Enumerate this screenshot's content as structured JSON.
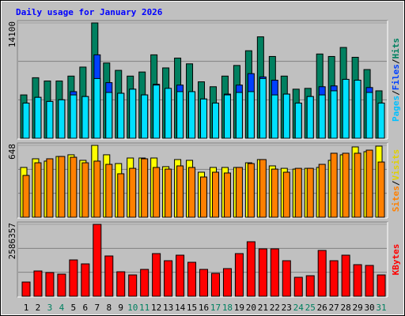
{
  "title": "Daily usage for January 2026",
  "legend_separator": "/",
  "categories": [
    "1",
    "2",
    "3",
    "4",
    "5",
    "6",
    "7",
    "8",
    "9",
    "10",
    "11",
    "12",
    "13",
    "14",
    "15",
    "16",
    "17",
    "18",
    "19",
    "20",
    "21",
    "22",
    "23",
    "24",
    "25",
    "26",
    "27",
    "28",
    "29",
    "30",
    "31"
  ],
  "category_colors": [
    "#000000",
    "#000000",
    "#008060",
    "#008060",
    "#000000",
    "#000000",
    "#000000",
    "#000000",
    "#000000",
    "#008060",
    "#008060",
    "#000000",
    "#000000",
    "#000000",
    "#000000",
    "#000000",
    "#008060",
    "#008060",
    "#000000",
    "#000000",
    "#000000",
    "#000000",
    "#000000",
    "#008060",
    "#008060",
    "#000000",
    "#000000",
    "#000000",
    "#000000",
    "#000000",
    "#008060"
  ],
  "chart_data": [
    {
      "type": "bar",
      "ylim": [
        0,
        14100
      ],
      "yticks": [
        14100
      ],
      "grid": true,
      "series": [
        {
          "name": "Hits",
          "color": "#008060",
          "label_color": "#008060",
          "values": [
            5300,
            7400,
            7000,
            7000,
            7600,
            8700,
            14100,
            9200,
            8300,
            7600,
            8100,
            10200,
            8600,
            9800,
            9100,
            6900,
            6300,
            7600,
            8900,
            10700,
            12400,
            10000,
            7600,
            6000,
            6100,
            10300,
            10000,
            11100,
            9900,
            8400,
            5800
          ]
        },
        {
          "name": "Files",
          "color": "#0040FF",
          "label_color": "#0040FF",
          "values": [
            4300,
            5000,
            4500,
            4700,
            5700,
            5100,
            10200,
            6800,
            5500,
            6000,
            5300,
            6600,
            5800,
            6500,
            5700,
            4800,
            4300,
            5400,
            6500,
            7900,
            7500,
            7100,
            5400,
            4300,
            5100,
            6300,
            6400,
            7200,
            7100,
            6200,
            4300
          ]
        },
        {
          "name": "Pages",
          "color": "#00E0FF",
          "label_color": "#00C0FF",
          "values": [
            4300,
            5000,
            4500,
            4700,
            5300,
            5100,
            7300,
            5600,
            5500,
            6000,
            5300,
            6500,
            6100,
            5700,
            5700,
            4800,
            4300,
            5300,
            5600,
            5700,
            7300,
            5300,
            5400,
            4300,
            5100,
            5300,
            5800,
            7200,
            7100,
            5600,
            4300
          ]
        }
      ]
    },
    {
      "type": "bar",
      "ylim": [
        0,
        648
      ],
      "yticks": [
        648
      ],
      "grid": true,
      "series": [
        {
          "name": "Visits",
          "color": "#FFFF00",
          "label_color": "#E0D000",
          "values": [
            449,
            527,
            506,
            548,
            563,
            513,
            648,
            563,
            484,
            534,
            534,
            534,
            456,
            520,
            513,
            406,
            449,
            449,
            449,
            491,
            520,
            463,
            441,
            434,
            441,
            449,
            513,
            563,
            634,
            591,
            641
          ]
        },
        {
          "name": "Sites",
          "color": "#FF8000",
          "label_color": "#FF8000",
          "values": [
            377,
            491,
            527,
            548,
            541,
            491,
            506,
            477,
            392,
            441,
            527,
            449,
            434,
            463,
            449,
            363,
            406,
            399,
            449,
            484,
            520,
            434,
            406,
            441,
            441,
            477,
            577,
            577,
            577,
            605,
            498
          ]
        }
      ]
    },
    {
      "type": "bar",
      "ylim": [
        0,
        2586357
      ],
      "yticks": [
        2586357
      ],
      "grid": true,
      "series": [
        {
          "name": "KBytes",
          "color": "#FF0000",
          "label_color": "#FF0000",
          "values": [
            511600,
            909500,
            852600,
            795800,
            1307400,
            1165300,
            2586357,
            1449500,
            881100,
            767400,
            966300,
            1534700,
            1278900,
            1477900,
            1222100,
            966300,
            824200,
            994700,
            1534700,
            1961000,
            1705300,
            1705300,
            1278900,
            682100,
            738900,
            1648400,
            1278900,
            1477900,
            1136800,
            1108400,
            767400
          ]
        }
      ]
    }
  ]
}
